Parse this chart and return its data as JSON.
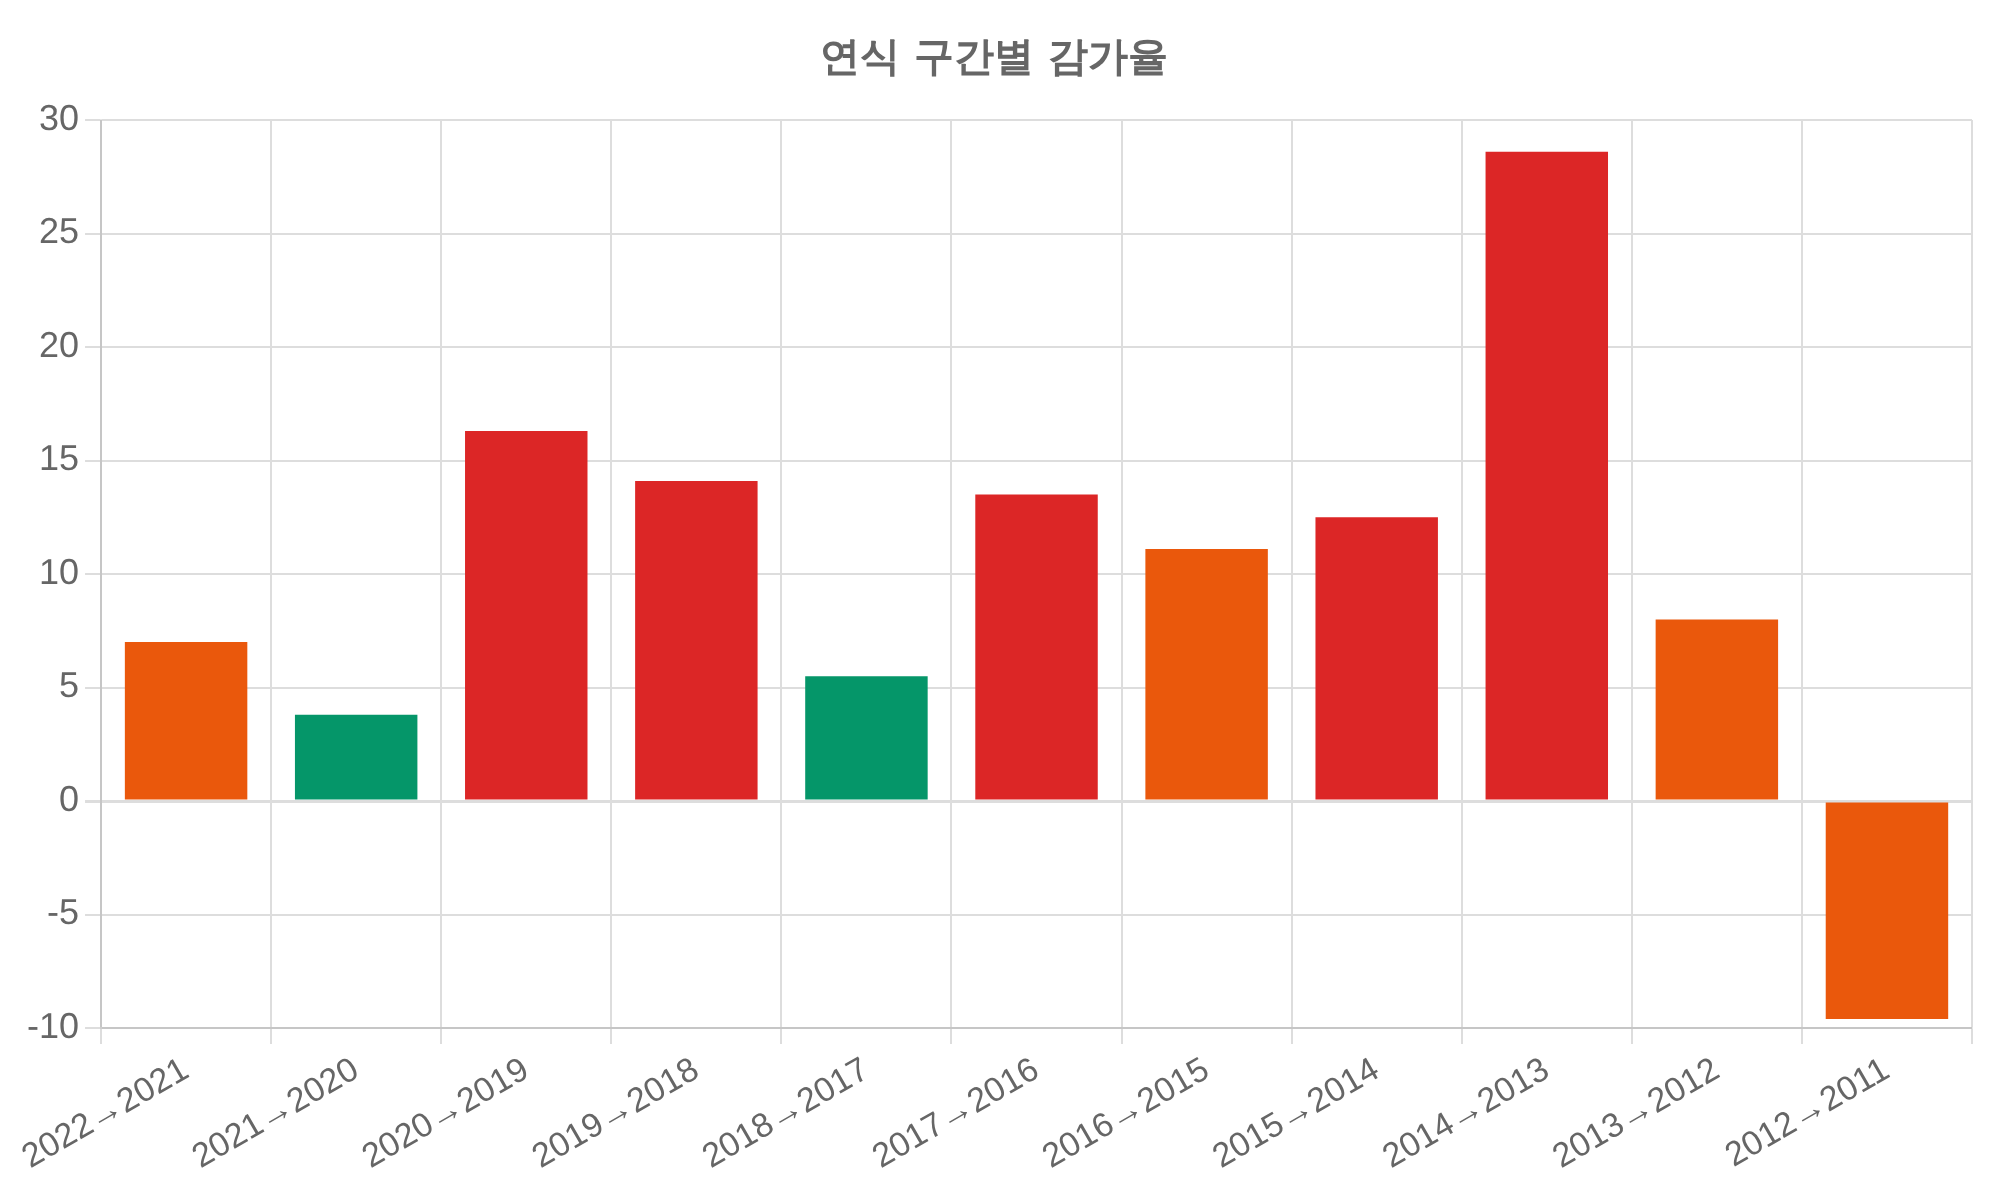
{
  "chart_data": {
    "type": "bar",
    "title": "연식 구간별 감가율",
    "categories": [
      "2022→2021",
      "2021→2020",
      "2020→2019",
      "2019→2018",
      "2018→2017",
      "2017→2016",
      "2016→2015",
      "2015→2014",
      "2014→2013",
      "2013→2012",
      "2012→2011"
    ],
    "values": [
      7.0,
      3.8,
      16.3,
      14.1,
      5.5,
      13.5,
      11.1,
      12.5,
      28.6,
      8.0,
      -9.6
    ],
    "colors": [
      "#ea580c",
      "#059669",
      "#dc2626",
      "#dc2626",
      "#059669",
      "#dc2626",
      "#ea580c",
      "#dc2626",
      "#dc2626",
      "#ea580c",
      "#ea580c"
    ],
    "ylim": [
      -10,
      30
    ],
    "yticks": [
      -10,
      -5,
      0,
      5,
      10,
      15,
      20,
      25,
      30
    ],
    "grid": true,
    "legend": false
  }
}
